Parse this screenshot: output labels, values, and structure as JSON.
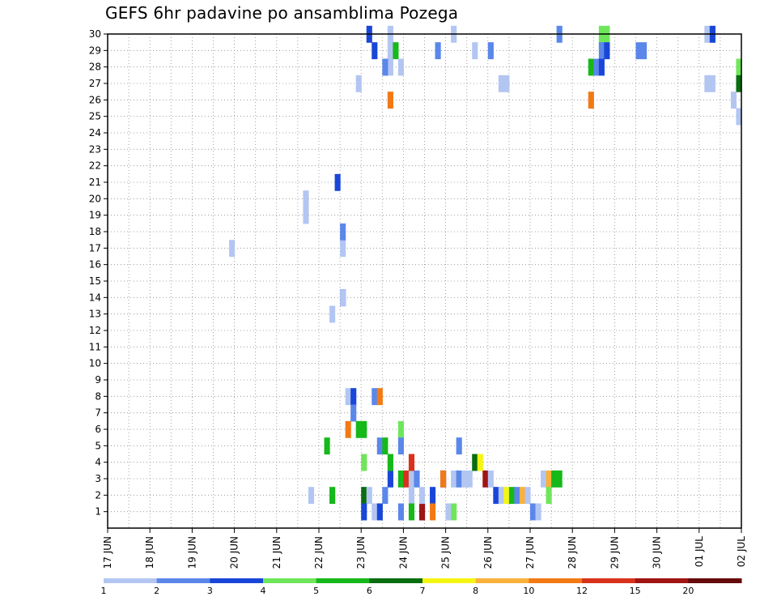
{
  "chart_data": {
    "type": "heatmap",
    "title": "GEFS 6hr padavine po ansamblima Pozega",
    "xlabel": "",
    "ylabel": "",
    "x_labels": [
      "17 JUN",
      "18 JUN",
      "19 JUN",
      "20 JUN",
      "21 JUN",
      "22 JUN",
      "23 JUN",
      "24 JUN",
      "25 JUN",
      "26 JUN",
      "27 JUN",
      "28 JUN",
      "29 JUN",
      "30 JUN",
      "01 JUL",
      "02 JUL"
    ],
    "y_labels": [
      "1",
      "2",
      "3",
      "4",
      "5",
      "6",
      "7",
      "8",
      "9",
      "10",
      "11",
      "12",
      "13",
      "14",
      "15",
      "16",
      "17",
      "18",
      "19",
      "20",
      "21",
      "22",
      "23",
      "24",
      "25",
      "26",
      "27",
      "28",
      "29",
      "30"
    ],
    "xlim": [
      0,
      60
    ],
    "ylim": [
      0,
      30
    ],
    "grid": true,
    "colorbar": {
      "labels": [
        "1",
        "2",
        "3",
        "4",
        "5",
        "6",
        "7",
        "8",
        "10",
        "12",
        "15",
        "20"
      ],
      "colors": [
        "#b3c6f2",
        "#5b87ea",
        "#1a46d8",
        "#6fe65a",
        "#16b81a",
        "#0a6e10",
        "#f5f514",
        "#f9b13c",
        "#f27a14",
        "#d8321a",
        "#a01414",
        "#660a0a"
      ]
    },
    "cells": [
      [
        11.5,
        17,
        1
      ],
      [
        21,
        13,
        1
      ],
      [
        20.5,
        5,
        5
      ],
      [
        21,
        2,
        5
      ],
      [
        18.5,
        20,
        1
      ],
      [
        18.5,
        19,
        1
      ],
      [
        19,
        2,
        1
      ],
      [
        21.5,
        21,
        3
      ],
      [
        22.5,
        8,
        1
      ],
      [
        22,
        17,
        1
      ],
      [
        22,
        18,
        2
      ],
      [
        22,
        14,
        3
      ],
      [
        22,
        14,
        1
      ],
      [
        22.5,
        6,
        9
      ],
      [
        23,
        8,
        3
      ],
      [
        23,
        7,
        2
      ],
      [
        23.5,
        6,
        5
      ],
      [
        24,
        6,
        5
      ],
      [
        24,
        2,
        1
      ],
      [
        24,
        2,
        6
      ],
      [
        24.5,
        2,
        1
      ],
      [
        25,
        8,
        2
      ],
      [
        25.5,
        8,
        9
      ],
      [
        24,
        4,
        4
      ],
      [
        24,
        1,
        3
      ],
      [
        25,
        1,
        1
      ],
      [
        25.5,
        1,
        3
      ],
      [
        26.5,
        3,
        3
      ],
      [
        26,
        2,
        2
      ],
      [
        25.5,
        5,
        2
      ],
      [
        26,
        5,
        5
      ],
      [
        26.5,
        4,
        5
      ],
      [
        27.5,
        6,
        4
      ],
      [
        27.5,
        5,
        2
      ],
      [
        27.5,
        3,
        5
      ],
      [
        27.5,
        1,
        2
      ],
      [
        28,
        3,
        10
      ],
      [
        28.5,
        3,
        1
      ],
      [
        29,
        3,
        2
      ],
      [
        28.5,
        2,
        1
      ],
      [
        28.5,
        4,
        10
      ],
      [
        28.5,
        1,
        5
      ],
      [
        29.5,
        1,
        2
      ],
      [
        29.5,
        1,
        11
      ],
      [
        29.5,
        2,
        1
      ],
      [
        30.5,
        2,
        3
      ],
      [
        30.5,
        1,
        9
      ],
      [
        31.5,
        3,
        3
      ],
      [
        31.5,
        3,
        9
      ],
      [
        32,
        1,
        1
      ],
      [
        32.5,
        1,
        4
      ],
      [
        32.5,
        3,
        1
      ],
      [
        33,
        3,
        2
      ],
      [
        33,
        5,
        2
      ],
      [
        33.5,
        3,
        1
      ],
      [
        34,
        3,
        1
      ],
      [
        34.5,
        4,
        6
      ],
      [
        35,
        4,
        7
      ],
      [
        35.5,
        3,
        11
      ],
      [
        36,
        3,
        1
      ],
      [
        36.5,
        2,
        3
      ],
      [
        37,
        2,
        1
      ],
      [
        37.5,
        2,
        7
      ],
      [
        38,
        2,
        5
      ],
      [
        38.5,
        2,
        2
      ],
      [
        39,
        2,
        8
      ],
      [
        39.5,
        2,
        1
      ],
      [
        40,
        1,
        2
      ],
      [
        40.5,
        1,
        1
      ],
      [
        41,
        3,
        1
      ],
      [
        41.5,
        3,
        8
      ],
      [
        41.5,
        2,
        4
      ],
      [
        42,
        3,
        5
      ],
      [
        42.5,
        3,
        5
      ]
    ],
    "point_cells": [
      {
        "x": 24.5,
        "y": 30,
        "v": 3
      },
      {
        "x": 26.5,
        "y": 30,
        "v": 1
      },
      {
        "x": 25,
        "y": 29,
        "v": 3
      },
      {
        "x": 26.5,
        "y": 29,
        "v": 1
      },
      {
        "x": 27,
        "y": 29,
        "v": 5
      },
      {
        "x": 31,
        "y": 29,
        "v": 2
      },
      {
        "x": 34.5,
        "y": 29,
        "v": 1
      },
      {
        "x": 36,
        "y": 29,
        "v": 2
      },
      {
        "x": 32.5,
        "y": 30,
        "v": 1
      },
      {
        "x": 42.5,
        "y": 30,
        "v": 2
      },
      {
        "x": 46.5,
        "y": 30,
        "v": 4
      },
      {
        "x": 47,
        "y": 30,
        "v": 4
      },
      {
        "x": 56.5,
        "y": 30,
        "v": 1
      },
      {
        "x": 57,
        "y": 30,
        "v": 3
      },
      {
        "x": 46.5,
        "y": 29,
        "v": 2
      },
      {
        "x": 47,
        "y": 29,
        "v": 3
      },
      {
        "x": 50,
        "y": 29,
        "v": 2
      },
      {
        "x": 50.5,
        "y": 29,
        "v": 2
      },
      {
        "x": 26.5,
        "y": 28,
        "v": 1
      },
      {
        "x": 26,
        "y": 28,
        "v": 2
      },
      {
        "x": 27.5,
        "y": 28,
        "v": 1
      },
      {
        "x": 45.5,
        "y": 28,
        "v": 5
      },
      {
        "x": 46,
        "y": 28,
        "v": 2
      },
      {
        "x": 46.5,
        "y": 28,
        "v": 3
      },
      {
        "x": 59.5,
        "y": 28,
        "v": 4
      },
      {
        "x": 23.5,
        "y": 27,
        "v": 1
      },
      {
        "x": 37,
        "y": 27,
        "v": 1
      },
      {
        "x": 37.5,
        "y": 27,
        "v": 1
      },
      {
        "x": 56.5,
        "y": 27,
        "v": 1
      },
      {
        "x": 57,
        "y": 27,
        "v": 1
      },
      {
        "x": 59.5,
        "y": 27,
        "v": 6
      },
      {
        "x": 26.5,
        "y": 26,
        "v": 9
      },
      {
        "x": 45.5,
        "y": 26,
        "v": 9
      },
      {
        "x": 59,
        "y": 26,
        "v": 1
      },
      {
        "x": 59.5,
        "y": 25,
        "v": 1
      }
    ]
  }
}
